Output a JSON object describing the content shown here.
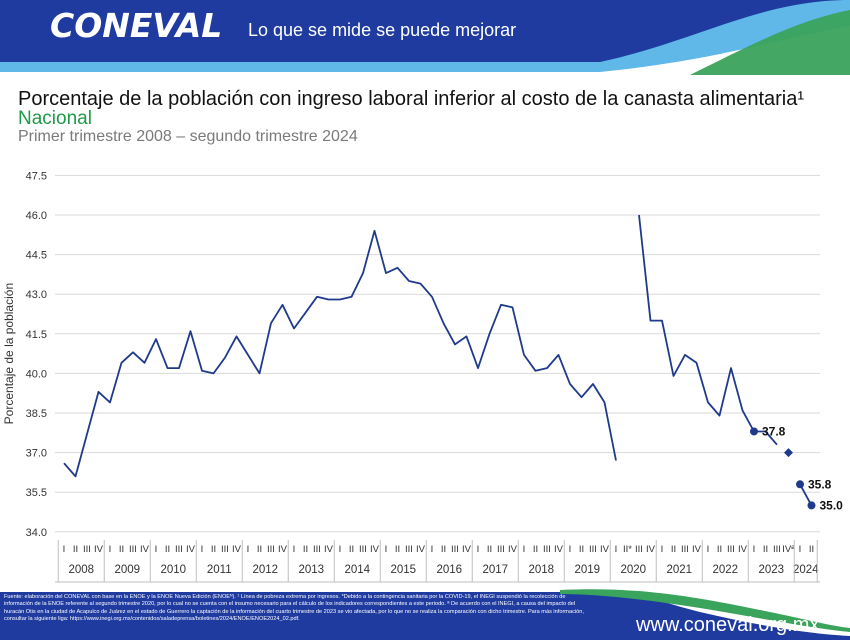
{
  "header": {
    "logo": "CONEVAL",
    "slogan": "Lo que se mide se puede mejorar",
    "colors": {
      "navy": "#1f3ba0",
      "light_blue": "#5fb8e8",
      "green": "#3aa35c"
    }
  },
  "titles": {
    "title": "Porcentaje de la población con ingreso laboral inferior al costo de la canasta alimentaria¹",
    "subtitle": "Nacional",
    "period": "Primer trimestre 2008 – segundo trimestre 2024"
  },
  "footer": {
    "note": "Fuente: elaboración del CONEVAL con base en la ENOE y la ENOE Nueva Edición (ENOEᴺ). ¹ Línea de pobreza extrema por ingresos. *Debido a la contingencia sanitaria por la COVID-19, el INEGI suspendió la recolección de información de la ENOE referente al segundo trimestre 2020, por lo cual no se cuenta con el insumo necesario para el cálculo de los indicadores correspondientes a este periodo. ª De acuerdo con el INEGI, a causa del impacto del huracán Otis en la ciudad de Acapulco de Juárez en el estado de Guerrero la captación de la información del cuarto trimestre de 2023 se vio afectada, por lo que no se realiza la comparación con dicho trimestre. Para más información, consultar la siguiente liga: https://www.inegi.org.mx/contenidos/saladeprensa/boletines/2024/ENOE/ENOE2024_02.pdf.",
    "website": "www.coneval.org.mx"
  },
  "chart_data": {
    "type": "line",
    "ylabel": "Porcentaje de la población",
    "ylim": [
      34.0,
      47.5
    ],
    "yticks": [
      "34.0",
      "35.5",
      "37.0",
      "38.5",
      "40.0",
      "41.5",
      "43.0",
      "44.5",
      "46.0",
      "47.5"
    ],
    "grid": true,
    "line_color": "#1f3a8a",
    "years": [
      "2008",
      "2009",
      "2010",
      "2011",
      "2012",
      "2013",
      "2014",
      "2015",
      "2016",
      "2017",
      "2018",
      "2019",
      "2020",
      "2021",
      "2022",
      "2023",
      "2024"
    ],
    "quarter_labels": [
      [
        "I",
        "II",
        "III",
        "IV"
      ],
      [
        "I",
        "II",
        "III",
        "IV"
      ],
      [
        "I",
        "II",
        "III",
        "IV"
      ],
      [
        "I",
        "II",
        "III",
        "IV"
      ],
      [
        "I",
        "II",
        "III",
        "IV"
      ],
      [
        "I",
        "II",
        "III",
        "IV"
      ],
      [
        "I",
        "II",
        "III",
        "IV"
      ],
      [
        "I",
        "II",
        "III",
        "IV"
      ],
      [
        "I",
        "II",
        "III",
        "IV"
      ],
      [
        "I",
        "II",
        "III",
        "IV"
      ],
      [
        "I",
        "II",
        "III",
        "IV"
      ],
      [
        "I",
        "II",
        "III",
        "IV"
      ],
      [
        "I",
        "II*",
        "III",
        "IV"
      ],
      [
        "I",
        "II",
        "III",
        "IV"
      ],
      [
        "I",
        "II",
        "III",
        "IV"
      ],
      [
        "I",
        "II",
        "III",
        "IVª"
      ],
      [
        "I",
        "II"
      ]
    ],
    "segments": [
      {
        "start_index": 0,
        "values": [
          36.6,
          36.1,
          37.7,
          39.3,
          38.9,
          40.4,
          40.8,
          40.4,
          41.3,
          40.2,
          40.2,
          41.6,
          40.1,
          40.0,
          40.6,
          41.4,
          40.7,
          40.0,
          41.9,
          42.6,
          41.7,
          42.3,
          42.9,
          42.8,
          42.8,
          42.9,
          43.8,
          45.4,
          43.8,
          44.0,
          43.5,
          43.4,
          42.9,
          41.9,
          41.1,
          41.4,
          40.2,
          41.5,
          42.6,
          42.5,
          40.7,
          40.1,
          40.2,
          40.7,
          39.6,
          39.1,
          39.6,
          38.9,
          36.7
        ]
      },
      {
        "start_index": 50,
        "values": [
          46.0,
          42.0,
          42.0,
          39.9,
          40.7,
          40.4,
          38.9,
          38.4,
          40.2,
          38.6,
          37.8,
          37.8,
          37.3
        ]
      }
    ],
    "markers": [
      {
        "index": 60,
        "value": 37.8,
        "label": "37.8",
        "shape": "circle"
      },
      {
        "index": 63,
        "value": 37.0,
        "label": "",
        "shape": "diamond"
      },
      {
        "index": 64,
        "value": 35.8,
        "label": "35.8",
        "shape": "circle"
      },
      {
        "index": 65,
        "value": 35.0,
        "label": "35.0",
        "shape": "circle"
      }
    ]
  }
}
